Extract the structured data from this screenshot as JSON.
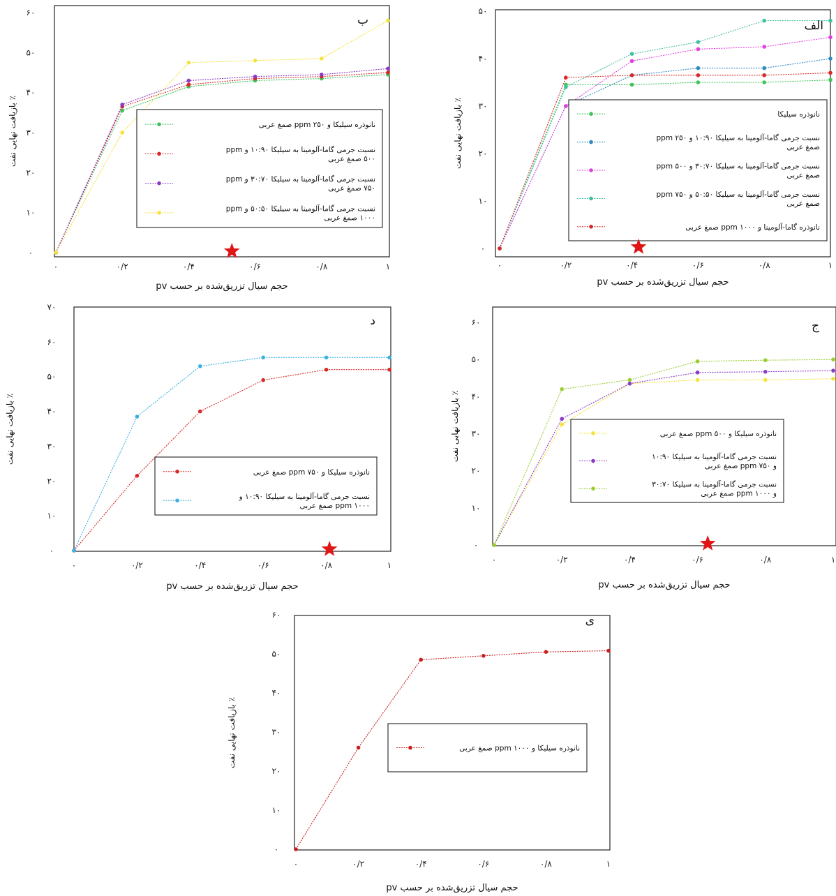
{
  "chart_data": [
    {
      "id": "alef",
      "type": "line",
      "panel_label": "الف",
      "xlabel": "حجم سیال تزریق‌شده بر حسب pv",
      "ylabel": "٪ بازیافت نهایی نفت",
      "xlim": [
        0,
        1
      ],
      "ylim": [
        0,
        50
      ],
      "x_ticks": [
        "۰",
        "۰/۲",
        "۰/۴",
        "۰/۶",
        "۰/۸",
        "۱"
      ],
      "y_ticks": [
        "۰",
        "۱۰",
        "۲۰",
        "۳۰",
        "۴۰",
        "۵۰"
      ],
      "legend_position": "right",
      "marker_x": 0.42,
      "series": [
        {
          "name": "نانوذره سیلیکا",
          "color": "#3ec45a",
          "x": [
            0,
            0.2,
            0.4,
            0.6,
            0.8,
            1
          ],
          "y": [
            0,
            34.5,
            34.5,
            35,
            35,
            35.5
          ]
        },
        {
          "name": "نسبت جرمی گاما-آلومینا به سیلیکا ۱۰:۹۰ و ppm ۲۵۰ صمغ عربی",
          "color": "#2e8bc0",
          "x": [
            0,
            0.2,
            0.4,
            0.6,
            0.8,
            1
          ],
          "y": [
            0,
            30,
            36.5,
            38,
            38,
            40
          ]
        },
        {
          "name": "نسبت جرمی گاما-آلومینا به سیلیکا ۳۰:۷۰ و ppm ۵۰۰ صمغ عربی",
          "color": "#e040e0",
          "x": [
            0,
            0.2,
            0.4,
            0.6,
            0.8,
            1
          ],
          "y": [
            0,
            30,
            39.5,
            42,
            42.5,
            44.5
          ]
        },
        {
          "name": "نسبت جرمی گاما-آلومینا به سیلیکا ۵۰:۵۰ و ppm ۷۵۰ صمغ عربی",
          "color": "#40c0a0",
          "x": [
            0,
            0.2,
            0.4,
            0.6,
            0.8,
            1
          ],
          "y": [
            0,
            34,
            41,
            43.5,
            48,
            48
          ]
        },
        {
          "name": "نانوذره گاما-آلومینا و ppm ۱۰۰۰ صمغ عربی",
          "color": "#d62828",
          "x": [
            0,
            0.2,
            0.4,
            0.6,
            0.8,
            1
          ],
          "y": [
            0,
            36,
            36.5,
            36.5,
            36.5,
            37
          ]
        }
      ]
    },
    {
      "id": "be",
      "type": "line",
      "panel_label": "ب",
      "xlabel": "حجم سیال تزریق‌شده بر حسب pv",
      "ylabel": "٪ بازیافت نهایی نفت",
      "xlim": [
        0,
        1
      ],
      "ylim": [
        0,
        60
      ],
      "x_ticks": [
        "۰",
        "۰/۲",
        "۰/۴",
        "۰/۶",
        "۰/۸",
        "۱"
      ],
      "y_ticks": [
        "۰",
        "۱۰",
        "۲۰",
        "۳۰",
        "۴۰",
        "۵۰",
        "۶۰"
      ],
      "legend_position": "right",
      "marker_x": 0.53,
      "series": [
        {
          "name": "نانوذره سیلیکا و ppm ۲۵۰ صمغ عربی",
          "color": "#3ec45a",
          "x": [
            0,
            0.2,
            0.4,
            0.6,
            0.8,
            1
          ],
          "y": [
            0,
            35.5,
            41.5,
            43,
            43.5,
            44.5
          ]
        },
        {
          "name": "نسبت جرمی گاما-آلومینا به سیلیکا ۱۰:۹۰ و ppm ۵۰۰ صمغ عربی",
          "color": "#d62828",
          "x": [
            0,
            0.2,
            0.4,
            0.6,
            0.8,
            1
          ],
          "y": [
            0,
            36.5,
            42,
            43.5,
            44,
            45
          ]
        },
        {
          "name": "نسبت جرمی گاما-آلومینا به سیلیکا ۳۰:۷۰ و ppm ۷۵۰ صمغ عربی",
          "color": "#8a3ac8",
          "x": [
            0,
            0.2,
            0.4,
            0.6,
            0.8,
            1
          ],
          "y": [
            0,
            37,
            43,
            44,
            44.5,
            46
          ]
        },
        {
          "name": "نسبت جرمی گاما-آلومینا به سیلیکا ۵۰:۵۰ و ppm ۱۰۰۰ صمغ عربی",
          "color": "#f5e23a",
          "x": [
            0,
            0.2,
            0.4,
            0.6,
            0.8,
            1
          ],
          "y": [
            0,
            30,
            47.5,
            48,
            48.5,
            58
          ]
        }
      ]
    },
    {
      "id": "jim",
      "type": "line",
      "panel_label": "ج",
      "xlabel": "حجم سیال تزریق‌شده بر حسب pv",
      "ylabel": "٪ بازیافت نهایی نفت",
      "xlim": [
        0,
        1
      ],
      "ylim": [
        0,
        60
      ],
      "x_ticks": [
        "۰",
        "۰/۲",
        "۰/۴",
        "۰/۶",
        "۰/۸",
        "۱"
      ],
      "y_ticks": [
        "۰",
        "۱۰",
        "۲۰",
        "۳۰",
        "۴۰",
        "۵۰",
        "۶۰"
      ],
      "legend_position": "center",
      "marker_x": 0.63,
      "series": [
        {
          "name": "نانوذره سیلیکا و ppm ۵۰۰ صمغ عربی",
          "color": "#f5e23a",
          "x": [
            0,
            0.2,
            0.4,
            0.6,
            0.8,
            1
          ],
          "y": [
            0,
            32.5,
            43.5,
            44.5,
            44.5,
            44.8
          ]
        },
        {
          "name": "نسبت جرمی گاما-آلومینا به سیلیکا ۱۰:۹۰ و ppm ۷۵۰ صمغ عربی",
          "color": "#8a3ac8",
          "x": [
            0,
            0.2,
            0.4,
            0.6,
            0.8,
            1
          ],
          "y": [
            0,
            34,
            43.5,
            46.5,
            46.7,
            47
          ]
        },
        {
          "name": "نسبت جرمی گاما-آلومینا به سیلیکا ۳۰:۷۰ و ppm ۱۰۰۰ صمغ عربی",
          "color": "#9acd32",
          "x": [
            0,
            0.2,
            0.4,
            0.6,
            0.8,
            1
          ],
          "y": [
            0,
            42,
            44.5,
            49.5,
            49.8,
            50
          ]
        }
      ]
    },
    {
      "id": "dal",
      "type": "line",
      "panel_label": "د",
      "xlabel": "حجم سیال تزریق‌شده بر حسب pv",
      "ylabel": "٪ بازیافت نهایی نفت",
      "xlim": [
        0,
        1
      ],
      "ylim": [
        0,
        70
      ],
      "x_ticks": [
        "۰",
        "۰/۲",
        "۰/۴",
        "۰/۶",
        "۰/۸",
        "۱"
      ],
      "y_ticks": [
        "۰",
        "۱۰",
        "۲۰",
        "۳۰",
        "۴۰",
        "۵۰",
        "۶۰",
        "۷۰"
      ],
      "legend_position": "right",
      "marker_x": 0.81,
      "series": [
        {
          "name": "نانوذره سیلیکا و ppm ۷۵۰ صمغ عربی",
          "color": "#d62828",
          "x": [
            0,
            0.2,
            0.4,
            0.6,
            0.8,
            1
          ],
          "y": [
            0,
            21.5,
            40,
            49,
            52,
            52
          ]
        },
        {
          "name": "نسبت جرمی گاما-آلومینا به سیلیکا ۱۰:۹۰ و ppm ۱۰۰۰ صمغ عربی",
          "color": "#3ab0e0",
          "x": [
            0,
            0.2,
            0.4,
            0.6,
            0.8,
            1
          ],
          "y": [
            0,
            38.5,
            53,
            55.5,
            55.5,
            55.5
          ]
        }
      ]
    },
    {
      "id": "ye",
      "type": "line",
      "panel_label": "ی",
      "xlabel": "حجم سیال تزریق‌شده بر حسب pv",
      "ylabel": "٪ بازیافت نهایی نفت",
      "xlim": [
        0,
        1
      ],
      "ylim": [
        0,
        60
      ],
      "x_ticks": [
        "۰",
        "۰/۲",
        "۰/۴",
        "۰/۶",
        "۰/۸",
        "۱"
      ],
      "y_ticks": [
        "۰",
        "۱۰",
        "۲۰",
        "۳۰",
        "۴۰",
        "۵۰",
        "۶۰"
      ],
      "legend_position": "center",
      "series": [
        {
          "name": "نانوذره سیلیکا و ppm ۱۰۰۰ صمغ عربی",
          "color": "#c81e1e",
          "x": [
            0,
            0.2,
            0.4,
            0.6,
            0.8,
            1
          ],
          "y": [
            0,
            26,
            48.5,
            49.5,
            50.5,
            50.8
          ]
        }
      ]
    }
  ]
}
